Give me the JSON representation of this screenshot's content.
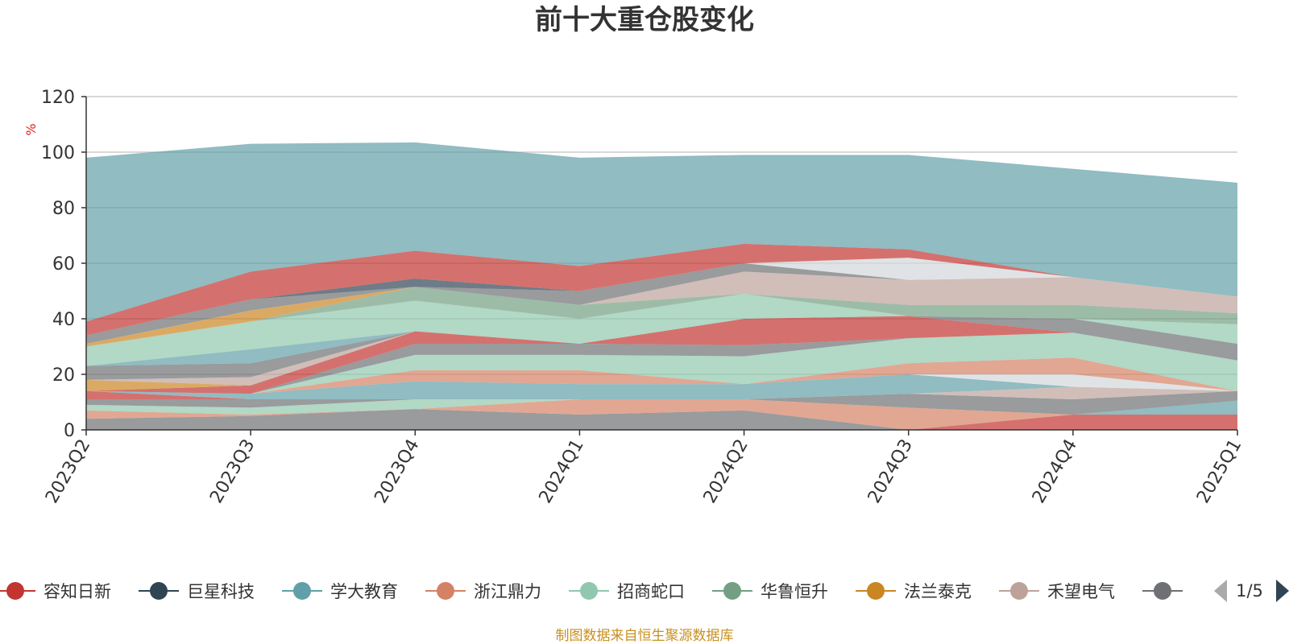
{
  "chart_data": {
    "type": "area",
    "title": "前十大重仓股变化",
    "ylabel": "%",
    "ylim": [
      0,
      120
    ],
    "yticks": [
      0,
      20,
      40,
      60,
      80,
      100,
      120
    ],
    "categories": [
      "2023Q2",
      "2023Q3",
      "2023Q4",
      "2024Q1",
      "2024Q2",
      "2024Q3",
      "2024Q4",
      "2025Q1"
    ],
    "grid": true,
    "legend_position": "bottom",
    "legend_page": "1/5",
    "source": "制图数据来自恒生聚源数据库",
    "legend": [
      {
        "name": "容知日新",
        "color": "#c23531"
      },
      {
        "name": "巨星科技",
        "color": "#2f4554"
      },
      {
        "name": "学大教育",
        "color": "#61a0a8"
      },
      {
        "name": "浙江鼎力",
        "color": "#d48265"
      },
      {
        "name": "招商蛇口",
        "color": "#91c7ae"
      },
      {
        "name": "华鲁恒升",
        "color": "#749f83"
      },
      {
        "name": "法兰泰克",
        "color": "#ca8622"
      },
      {
        "name": "禾望电气",
        "color": "#bda29a"
      },
      {
        "name": "",
        "color": "#6e7074"
      }
    ],
    "series": [
      {
        "color": "#6e7074",
        "values": [
          4,
          5,
          7.5,
          5.5,
          7,
          0,
          0,
          0
        ]
      },
      {
        "color": "#c23531",
        "values": [
          0,
          0,
          0,
          0,
          0,
          0,
          5.5,
          5.5
        ]
      },
      {
        "color": "#61a0a8",
        "values": [
          0,
          0,
          0,
          0,
          0,
          0,
          0,
          5
        ]
      },
      {
        "color": "#d48265",
        "values": [
          3,
          0.5,
          0,
          5.5,
          4,
          8,
          0,
          0
        ]
      },
      {
        "color": "#91c7ae",
        "values": [
          2,
          2.5,
          3.5,
          0,
          0,
          0,
          0,
          0
        ]
      },
      {
        "color": "#6e7074",
        "values": [
          0,
          0,
          0,
          0,
          0,
          5,
          5.5,
          3.5
        ]
      },
      {
        "color": "#bda29a",
        "values": [
          0,
          0,
          0,
          0,
          0,
          0,
          4.5,
          0
        ]
      },
      {
        "color": "#6e7074",
        "values": [
          2,
          3,
          0,
          0,
          0,
          0,
          0,
          0
        ]
      },
      {
        "color": "#c23531",
        "values": [
          3,
          0,
          0,
          0,
          0,
          0,
          0,
          0
        ]
      },
      {
        "color": "#61a0a8",
        "values": [
          0,
          2,
          6.5,
          5.5,
          5.5,
          7,
          0,
          0
        ]
      },
      {
        "color": "#d3d7dc",
        "values": [
          0,
          0,
          0,
          0,
          0,
          0,
          4.5,
          0
        ]
      },
      {
        "color": "#d48265",
        "values": [
          0,
          0,
          4,
          5,
          0,
          4,
          6,
          0
        ]
      },
      {
        "color": "#91c7ae",
        "values": [
          0,
          0,
          5.5,
          5.5,
          10,
          9,
          9,
          11
        ]
      },
      {
        "color": "#6e7074",
        "values": [
          0,
          0,
          4,
          4,
          4,
          0,
          0,
          0
        ]
      },
      {
        "color": "#c23531",
        "values": [
          0,
          3,
          4.5,
          0,
          9.5,
          8,
          0,
          0
        ]
      },
      {
        "color": "#6e7074",
        "values": [
          0,
          0,
          0,
          0,
          0,
          0,
          5,
          6
        ]
      },
      {
        "color": "#91c7ae",
        "values": [
          0,
          0,
          0,
          0,
          0,
          0,
          0,
          7
        ]
      },
      {
        "color": "#ca8622",
        "values": [
          4,
          0,
          0,
          0,
          0,
          0,
          0,
          0
        ]
      },
      {
        "color": "#bda29a",
        "values": [
          0,
          3,
          0,
          0,
          0,
          0,
          0,
          0
        ]
      },
      {
        "color": "#6e7074",
        "values": [
          5,
          5,
          0,
          0,
          0,
          0,
          0,
          0
        ]
      },
      {
        "color": "#61a0a8",
        "values": [
          0,
          5,
          0,
          0,
          0,
          0,
          0,
          0
        ]
      },
      {
        "color": "#91c7ae",
        "values": [
          7,
          10,
          11,
          9,
          9,
          0,
          0,
          0
        ]
      },
      {
        "color": "#749f83",
        "values": [
          0,
          0,
          5,
          5,
          0,
          4,
          5,
          4
        ]
      },
      {
        "color": "#ca8622",
        "values": [
          1,
          4,
          0,
          0,
          0,
          0,
          0,
          0
        ]
      },
      {
        "color": "#bda29a",
        "values": [
          0,
          0,
          0,
          0,
          8,
          9,
          10,
          6
        ]
      },
      {
        "color": "#6e7074",
        "values": [
          3,
          4,
          0,
          5,
          3,
          0,
          0,
          0
        ]
      },
      {
        "color": "#d3d7dc",
        "values": [
          0,
          0,
          0,
          0,
          0,
          8,
          0,
          0
        ]
      },
      {
        "color": "#2f4554",
        "values": [
          0,
          0,
          3,
          0,
          0,
          0,
          0,
          0
        ]
      },
      {
        "color": "#c23531",
        "values": [
          5,
          10,
          10,
          9,
          7,
          3,
          0,
          0
        ]
      },
      {
        "color": "#61a0a8",
        "values": [
          59,
          46,
          39,
          39,
          32,
          34,
          39,
          41
        ]
      }
    ]
  }
}
